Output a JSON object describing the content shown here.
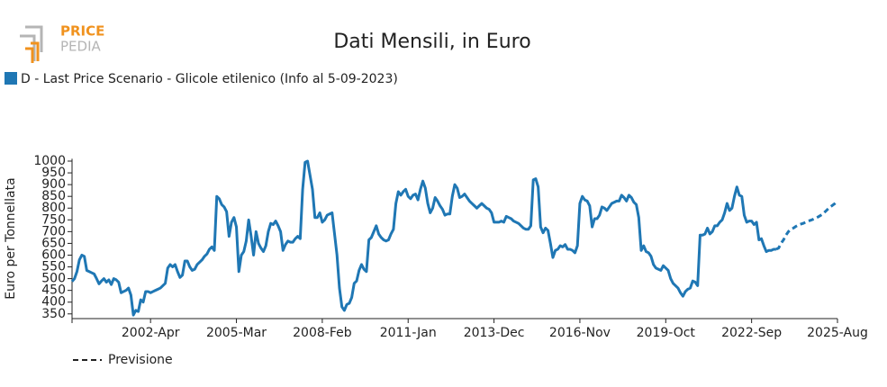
{
  "logo": [
    "PRICE",
    "PEDIA"
  ],
  "chart_data": {
    "type": "line",
    "title": "Dati Mensili, in Euro",
    "y_label": "Euro per Tonnellata",
    "ylim": [
      330,
      1010
    ],
    "yticks": [
      350,
      400,
      450,
      500,
      550,
      600,
      650,
      700,
      750,
      800,
      850,
      900,
      950,
      1000
    ],
    "categories": [
      null,
      null,
      null,
      null,
      null,
      null,
      null,
      null,
      null,
      null,
      null,
      null,
      null,
      null,
      null,
      null,
      null,
      null,
      null,
      null,
      null,
      null,
      null,
      null,
      null,
      null,
      null,
      null,
      null,
      null,
      null,
      null,
      "2002-Apr",
      null,
      null,
      null,
      null,
      null,
      null,
      null,
      null,
      null,
      null,
      null,
      null,
      null,
      null,
      null,
      null,
      null,
      null,
      null,
      null,
      null,
      null,
      null,
      null,
      null,
      null,
      null,
      null,
      null,
      null,
      null,
      null,
      null,
      null,
      "2005-Mar",
      null,
      null,
      null,
      null,
      null,
      null,
      null,
      null,
      null,
      null,
      null,
      null,
      null,
      null,
      null,
      null,
      null,
      null,
      null,
      null,
      null,
      null,
      null,
      null,
      null,
      null,
      null,
      null,
      null,
      null,
      null,
      null,
      null,
      null,
      "2008-Feb",
      null,
      null,
      null,
      null,
      null,
      null,
      null,
      null,
      null,
      null,
      null,
      null,
      null,
      null,
      null,
      null,
      null,
      null,
      null,
      null,
      null,
      null,
      null,
      null,
      null,
      null,
      null,
      null,
      null,
      null,
      null,
      null,
      null,
      null,
      "2011-Jan",
      null,
      null,
      null,
      null,
      null,
      null,
      null,
      null,
      null,
      null,
      null,
      null,
      null,
      null,
      null,
      null,
      null,
      null,
      null,
      null,
      null,
      null,
      null,
      null,
      null,
      null,
      null,
      null,
      null,
      null,
      null,
      null,
      null,
      null,
      "2013-Dec",
      null,
      null,
      null,
      null,
      null,
      null,
      null,
      null,
      null,
      null,
      null,
      null,
      null,
      null,
      null,
      null,
      null,
      null,
      null,
      null,
      null,
      null,
      null,
      null,
      null,
      null,
      null,
      null,
      null,
      null,
      null,
      null,
      null,
      null,
      "2016-Nov",
      null,
      null,
      null,
      null,
      null,
      null,
      null,
      null,
      null,
      null,
      null,
      null,
      null,
      null,
      null,
      null,
      null,
      null,
      null,
      null,
      null,
      null,
      null,
      null,
      null,
      null,
      null,
      null,
      null,
      null,
      null,
      null,
      null,
      null,
      "2019-Oct",
      null,
      null,
      null,
      null,
      null,
      null,
      null,
      null,
      null,
      null,
      null,
      null,
      null,
      null,
      null,
      null,
      null,
      null,
      null,
      null,
      null,
      null,
      null,
      null,
      null,
      null,
      null,
      null,
      null,
      null,
      null,
      null,
      null,
      null,
      "2022-Sep",
      null,
      null,
      null,
      null,
      null,
      null,
      null,
      null,
      null,
      null,
      null,
      null,
      null,
      null,
      null,
      null,
      null,
      null,
      null,
      null,
      null,
      null,
      null,
      null,
      null,
      null,
      null,
      null,
      null,
      null,
      null,
      null,
      null,
      null,
      "2025-Aug"
    ],
    "series": [
      {
        "name": "D - Last Price Scenario - Glicole etilenico (Info al 5-09-2023)",
        "color": "#1f77b4",
        "line_style": "solid",
        "values": [
          488,
          500,
          530,
          580,
          600,
          595,
          535,
          530,
          525,
          520,
          500,
          478,
          490,
          500,
          485,
          495,
          475,
          500,
          495,
          485,
          440,
          445,
          450,
          460,
          430,
          345,
          365,
          360,
          410,
          400,
          445,
          445,
          440,
          445,
          450,
          455,
          460,
          470,
          480,
          545,
          560,
          550,
          560,
          530,
          505,
          515,
          575,
          575,
          550,
          535,
          540,
          560,
          570,
          580,
          595,
          605,
          625,
          635,
          620,
          850,
          840,
          815,
          805,
          785,
          680,
          740,
          760,
          720,
          530,
          600,
          615,
          660,
          750,
          680,
          600,
          700,
          650,
          630,
          615,
          640,
          700,
          735,
          730,
          745,
          725,
          700,
          620,
          645,
          660,
          655,
          655,
          670,
          680,
          670,
          880,
          995,
          1000,
          940,
          880,
          760,
          760,
          780,
          740,
          750,
          770,
          775,
          780,
          690,
          600,
          460,
          380,
          365,
          390,
          395,
          420,
          480,
          490,
          535,
          560,
          540,
          530,
          665,
          675,
          700,
          725,
          690,
          675,
          665,
          660,
          665,
          690,
          710,
          820,
          870,
          855,
          870,
          880,
          850,
          840,
          855,
          860,
          835,
          880,
          915,
          885,
          820,
          780,
          800,
          845,
          830,
          810,
          795,
          770,
          775,
          775,
          850,
          900,
          885,
          845,
          850,
          860,
          845,
          830,
          820,
          810,
          800,
          810,
          820,
          810,
          800,
          795,
          780,
          740,
          740,
          740,
          745,
          740,
          765,
          760,
          755,
          745,
          740,
          735,
          725,
          715,
          710,
          710,
          725,
          920,
          925,
          890,
          720,
          695,
          715,
          705,
          650,
          590,
          620,
          625,
          640,
          635,
          645,
          625,
          625,
          620,
          610,
          640,
          820,
          850,
          835,
          830,
          810,
          720,
          755,
          755,
          770,
          805,
          800,
          790,
          805,
          820,
          825,
          830,
          830,
          855,
          845,
          830,
          855,
          845,
          825,
          815,
          760,
          620,
          640,
          615,
          610,
          595,
          560,
          545,
          540,
          535,
          555,
          545,
          535,
          500,
          480,
          470,
          460,
          440,
          425,
          445,
          455,
          460,
          490,
          485,
          470,
          685,
          685,
          690,
          715,
          690,
          700,
          725,
          725,
          740,
          750,
          780,
          820,
          790,
          800,
          850,
          890,
          855,
          850,
          770,
          740,
          745,
          745,
          730,
          740,
          665,
          670,
          640,
          615,
          620,
          620,
          625,
          625,
          null,
          null,
          null,
          null,
          null,
          null,
          null,
          null,
          null,
          null,
          null,
          null,
          null,
          null,
          null,
          null,
          null,
          null,
          null,
          null,
          null,
          null,
          null,
          null,
          null
        ]
      },
      {
        "name": "Previsione",
        "color": "#1f77b4",
        "line_style": "dashed",
        "values": [
          null,
          null,
          null,
          null,
          null,
          null,
          null,
          null,
          null,
          null,
          null,
          null,
          null,
          null,
          null,
          null,
          null,
          null,
          null,
          null,
          null,
          null,
          null,
          null,
          null,
          null,
          null,
          null,
          null,
          null,
          null,
          null,
          null,
          null,
          null,
          null,
          null,
          null,
          null,
          null,
          null,
          null,
          null,
          null,
          null,
          null,
          null,
          null,
          null,
          null,
          null,
          null,
          null,
          null,
          null,
          null,
          null,
          null,
          null,
          null,
          null,
          null,
          null,
          null,
          null,
          null,
          null,
          null,
          null,
          null,
          null,
          null,
          null,
          null,
          null,
          null,
          null,
          null,
          null,
          null,
          null,
          null,
          null,
          null,
          null,
          null,
          null,
          null,
          null,
          null,
          null,
          null,
          null,
          null,
          null,
          null,
          null,
          null,
          null,
          null,
          null,
          null,
          null,
          null,
          null,
          null,
          null,
          null,
          null,
          null,
          null,
          null,
          null,
          null,
          null,
          null,
          null,
          null,
          null,
          null,
          null,
          null,
          null,
          null,
          null,
          null,
          null,
          null,
          null,
          null,
          null,
          null,
          null,
          null,
          null,
          null,
          null,
          null,
          null,
          null,
          null,
          null,
          null,
          null,
          null,
          null,
          null,
          null,
          null,
          null,
          null,
          null,
          null,
          null,
          null,
          null,
          null,
          null,
          null,
          null,
          null,
          null,
          null,
          null,
          null,
          null,
          null,
          null,
          null,
          null,
          null,
          null,
          null,
          null,
          null,
          null,
          null,
          null,
          null,
          null,
          null,
          null,
          null,
          null,
          null,
          null,
          null,
          null,
          null,
          null,
          null,
          null,
          null,
          null,
          null,
          null,
          null,
          null,
          null,
          null,
          null,
          null,
          null,
          null,
          null,
          null,
          null,
          null,
          null,
          null,
          null,
          null,
          null,
          null,
          null,
          null,
          null,
          null,
          null,
          null,
          null,
          null,
          null,
          null,
          null,
          null,
          null,
          null,
          null,
          null,
          null,
          null,
          null,
          null,
          null,
          null,
          null,
          null,
          null,
          null,
          null,
          null,
          null,
          null,
          null,
          null,
          null,
          null,
          null,
          null,
          null,
          null,
          null,
          null,
          null,
          null,
          null,
          null,
          null,
          null,
          null,
          null,
          null,
          null,
          null,
          null,
          null,
          null,
          null,
          null,
          null,
          null,
          null,
          null,
          null,
          null,
          null,
          null,
          null,
          null,
          null,
          null,
          null,
          null,
          null,
          null,
          null,
          625,
          630,
          650,
          665,
          685,
          700,
          710,
          715,
          722,
          728,
          732,
          735,
          740,
          745,
          748,
          752,
          757,
          762,
          768,
          775,
          785,
          795,
          805,
          812,
          820,
          830
        ]
      }
    ]
  }
}
